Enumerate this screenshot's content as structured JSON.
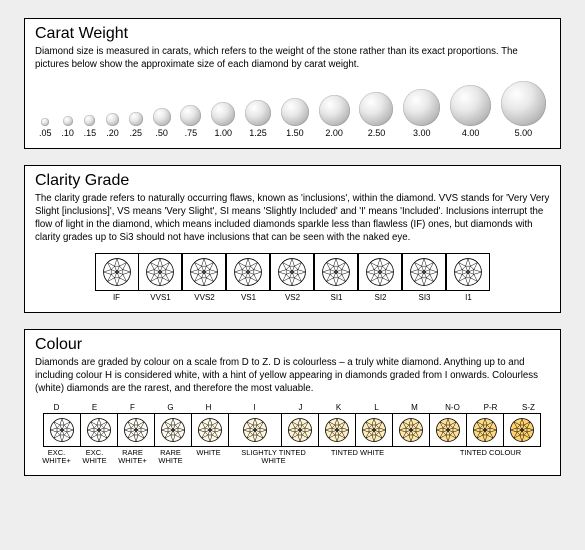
{
  "background_color": "#eeeeee",
  "panel_border_color": "#000000",
  "panel_bg": "#ffffff",
  "carat": {
    "title": "Carat Weight",
    "desc": "Diamond size is measured in carats, which refers to the weight of the stone rather than its exact proportions. The pictures below show the approximate size of each diamond by carat weight.",
    "items": [
      {
        "label": ".05",
        "size": 8
      },
      {
        "label": ".10",
        "size": 10
      },
      {
        "label": ".15",
        "size": 11
      },
      {
        "label": ".20",
        "size": 13
      },
      {
        "label": ".25",
        "size": 14
      },
      {
        "label": ".50",
        "size": 18
      },
      {
        "label": ".75",
        "size": 21
      },
      {
        "label": "1.00",
        "size": 24
      },
      {
        "label": "1.25",
        "size": 26
      },
      {
        "label": "1.50",
        "size": 28
      },
      {
        "label": "2.00",
        "size": 31
      },
      {
        "label": "2.50",
        "size": 34
      },
      {
        "label": "3.00",
        "size": 37
      },
      {
        "label": "4.00",
        "size": 41
      },
      {
        "label": "5.00",
        "size": 45
      }
    ]
  },
  "clarity": {
    "title": "Clarity Grade",
    "desc": "The clarity grade refers to naturally occurring flaws, known as 'inclusions', within the diamond.  VVS stands for 'Very Very Slight [inclusions]', VS means 'Very Slight', SI means 'Slightly Included' and 'I' means 'Included'. Inclusions interrupt the flow of light in the diamond, which means included diamonds sparkle less than flawless (IF) ones, but diamonds with clarity grades up to Si3 should not have inclusions that can be seen with the naked eye.",
    "grades": [
      "IF",
      "VVS1",
      "VVS2",
      "VS1",
      "VS2",
      "SI1",
      "SI2",
      "SI3",
      "I1"
    ],
    "diamond_size": 28,
    "diamond_stroke": "#000000",
    "diamond_fill": "#ffffff"
  },
  "colour": {
    "title": "Colour",
    "desc": "Diamonds are graded by colour on a scale from D to Z. D is colourless – a truly white diamond. Anything up to and including colour H is considered white, with a hint of yellow appearing in diamonds graded from I onwards. Colourless (white) diamonds are the rarest, and therefore the most valuable.",
    "cells": [
      {
        "letter": "D",
        "fill": "#ffffff",
        "width": 38,
        "group": "EXC. WHITE+"
      },
      {
        "letter": "E",
        "fill": "#fffefb",
        "width": 38,
        "group": "EXC. WHITE"
      },
      {
        "letter": "F",
        "fill": "#fffdf6",
        "width": 38,
        "group": "RARE WHITE+"
      },
      {
        "letter": "G",
        "fill": "#fffbee",
        "width": 38,
        "group": "RARE WHITE"
      },
      {
        "letter": "H",
        "fill": "#fff9e6",
        "width": 38,
        "group": "WHITE"
      },
      {
        "letter": "I",
        "fill": "#fff6db",
        "width": 54,
        "group": "SLIGHTLY TINTED WHITE"
      },
      {
        "letter": "J",
        "fill": "#fff3d0",
        "width": 38,
        "group": ""
      },
      {
        "letter": "K",
        "fill": "#ffefc3",
        "width": 38,
        "group": "TINTED WHITE"
      },
      {
        "letter": "L",
        "fill": "#ffecb8",
        "width": 38,
        "group": ""
      },
      {
        "letter": "M",
        "fill": "#ffe7a8",
        "width": 38,
        "group": ""
      },
      {
        "letter": "N-O",
        "fill": "#ffe197",
        "width": 38,
        "group": "TINTED COLOUR"
      },
      {
        "letter": "P-R",
        "fill": "#ffda82",
        "width": 38,
        "group": ""
      },
      {
        "letter": "S-Z",
        "fill": "#ffd26c",
        "width": 38,
        "group": ""
      }
    ],
    "group_spans": [
      {
        "label": "EXC.\nWHITE+",
        "width": 38
      },
      {
        "label": "EXC.\nWHITE",
        "width": 38
      },
      {
        "label": "RARE\nWHITE+",
        "width": 38
      },
      {
        "label": "RARE\nWHITE",
        "width": 38
      },
      {
        "label": "WHITE",
        "width": 38
      },
      {
        "label": "SLIGHTLY TINTED\nWHITE",
        "width": 92
      },
      {
        "label": "TINTED WHITE",
        "width": 76
      },
      {
        "label": "",
        "width": 38
      },
      {
        "label": "TINTED COLOUR",
        "width": 114
      }
    ],
    "diamond_size": 24,
    "diamond_stroke": "#000000"
  }
}
